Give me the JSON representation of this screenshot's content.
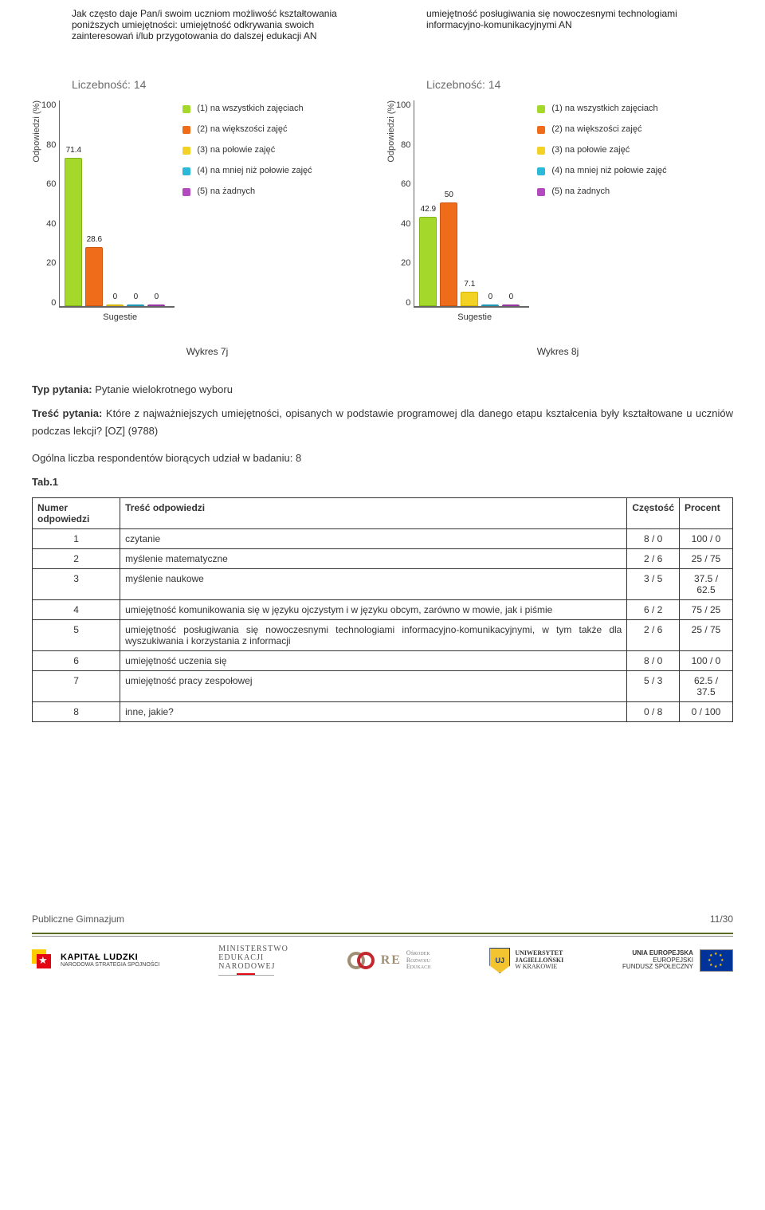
{
  "chart1": {
    "title": "Jak często daje Pan/i swoim uczniom możliwość kształtowania poniższych umiejętności: umiejętność odkrywania swoich zainteresowań i/lub przygotowania do dalszej edukacji\nAN",
    "count_label": "Liczebność: 14",
    "ylabel": "Odpowiedzi (%)",
    "xlabel": "Sugestie",
    "ymax": 100,
    "yticks": [
      0,
      20,
      40,
      60,
      80,
      100
    ],
    "bars": [
      {
        "value": 71.4,
        "label": "71.4",
        "x": 6,
        "fill": "#a4d92b",
        "stroke": "#7fb518"
      },
      {
        "value": 28.6,
        "label": "28.6",
        "x": 32,
        "fill": "#ef6c1a",
        "stroke": "#d0560f"
      },
      {
        "value": 0,
        "label": "0",
        "x": 58,
        "fill": "#f2d224",
        "stroke": "#d6b400"
      },
      {
        "value": 0,
        "label": "0",
        "x": 84,
        "fill": "#2bb8d9",
        "stroke": "#1a98b5"
      },
      {
        "value": 0,
        "label": "0",
        "x": 110,
        "fill": "#b44ac0",
        "stroke": "#9636a2"
      }
    ]
  },
  "chart2": {
    "title": "umiejętność posługiwania się nowoczesnymi technologiami informacyjno-komunikacyjnymi AN",
    "count_label": "Liczebność: 14",
    "ylabel": "Odpowiedzi (%)",
    "xlabel": "Sugestie",
    "ymax": 100,
    "yticks": [
      0,
      20,
      40,
      60,
      80,
      100
    ],
    "bars": [
      {
        "value": 42.9,
        "label": "42.9",
        "x": 6,
        "fill": "#a4d92b",
        "stroke": "#7fb518"
      },
      {
        "value": 50,
        "label": "50",
        "x": 32,
        "fill": "#ef6c1a",
        "stroke": "#d0560f"
      },
      {
        "value": 7.1,
        "label": "7.1",
        "x": 58,
        "fill": "#f2d224",
        "stroke": "#d6b400"
      },
      {
        "value": 0,
        "label": "0",
        "x": 84,
        "fill": "#2bb8d9",
        "stroke": "#1a98b5"
      },
      {
        "value": 0,
        "label": "0",
        "x": 110,
        "fill": "#b44ac0",
        "stroke": "#9636a2"
      }
    ]
  },
  "legend": [
    {
      "color": "#a4d92b",
      "label": "(1) na wszystkich zajęciach"
    },
    {
      "color": "#ef6c1a",
      "label": "(2) na większości zajęć"
    },
    {
      "color": "#f2d224",
      "label": "(3) na połowie zajęć"
    },
    {
      "color": "#2bb8d9",
      "label": "(4) na mniej niż połowie zajęć"
    },
    {
      "color": "#b44ac0",
      "label": "(5) na żadnych"
    }
  ],
  "captions": {
    "left": "Wykres 7j",
    "right": "Wykres 8j"
  },
  "question": {
    "type_label": "Typ pytania:",
    "type_value": "Pytanie wielokrotnego wyboru",
    "content_label": "Treść pytania:",
    "content_value": "Które z najważniejszych umiejętności, opisanych w podstawie programowej dla danego etapu kształcenia były kształtowane u uczniów podczas lekcji? [OZ] (9788)",
    "respondents": "Ogólna liczba respondentów biorących udział w badaniu: 8",
    "table_label": "Tab.1"
  },
  "table": {
    "headers": [
      "Numer odpowiedzi",
      "Treść odpowiedzi",
      "Częstość",
      "Procent"
    ],
    "rows": [
      {
        "num": "1",
        "text": "czytanie",
        "freq": "8 / 0",
        "pct": "100 / 0"
      },
      {
        "num": "2",
        "text": "myślenie matematyczne",
        "freq": "2 / 6",
        "pct": "25 / 75"
      },
      {
        "num": "3",
        "text": "myślenie naukowe",
        "freq": "3 / 5",
        "pct": "37.5 / 62.5"
      },
      {
        "num": "4",
        "text": "umiejętność komunikowania się w języku ojczystym i w języku obcym, zarówno w mowie, jak i piśmie",
        "freq": "6 / 2",
        "pct": "75 / 25"
      },
      {
        "num": "5",
        "text": "umiejętność posługiwania się nowoczesnymi technologiami informacyjno-komunikacyjnymi, w tym także dla wyszukiwania i korzystania z informacji",
        "freq": "2 / 6",
        "pct": "25 / 75"
      },
      {
        "num": "6",
        "text": "umiejętność uczenia się",
        "freq": "8 / 0",
        "pct": "100 / 0"
      },
      {
        "num": "7",
        "text": "umiejętność pracy zespołowej",
        "freq": "5 / 3",
        "pct": "62.5 / 37.5"
      },
      {
        "num": "8",
        "text": "inne, jakie?",
        "freq": "0 / 8",
        "pct": "0 / 100"
      }
    ]
  },
  "footer": {
    "left": "Publiczne Gimnazjum",
    "right": "11/30",
    "kl": {
      "title": "KAPITAŁ LUDZKI",
      "sub": "NARODOWA STRATEGIA SPÓJNOŚCI"
    },
    "men": {
      "l1": "MINISTERSTWO",
      "l2": "EDUKACJI",
      "l3": "NARODOWEJ"
    },
    "ore": {
      "title": "RE",
      "s1": "Ośrodek",
      "s2": "Rozwoju",
      "s3": "Edukacji"
    },
    "uj": {
      "l1": "UNIWERSYTET",
      "l2": "JAGIELLOŃSKI",
      "l3": "W KRAKOWIE"
    },
    "eu": {
      "l1": "UNIA EUROPEJSKA",
      "l2": "EUROPEJSKI",
      "l3": "FUNDUSZ SPOŁECZNY"
    }
  }
}
